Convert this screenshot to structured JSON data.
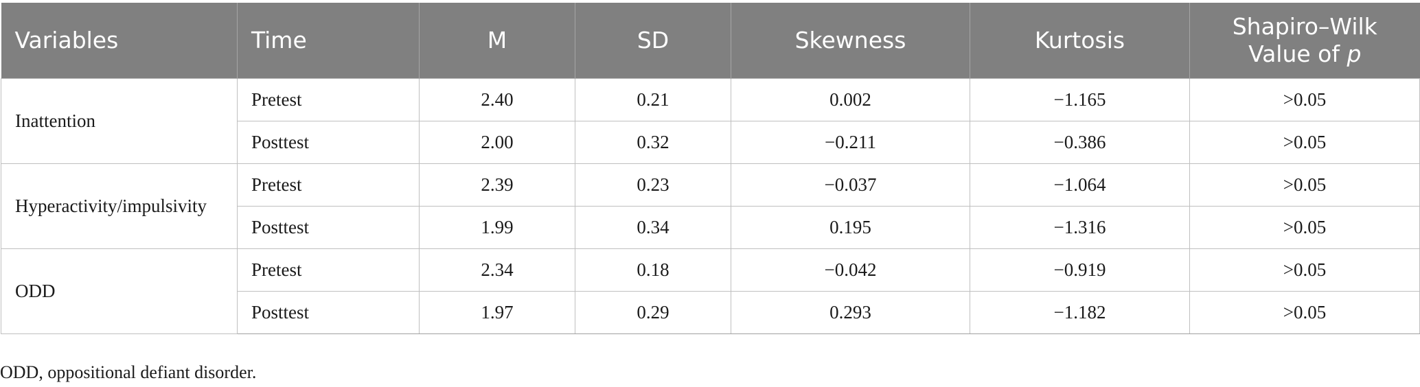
{
  "table": {
    "headers": {
      "variables": "Variables",
      "time": "Time",
      "m": "M",
      "sd": "SD",
      "skewness": "Skewness",
      "kurtosis": "Kurtosis",
      "sw_line1": "Shapiro–Wilk",
      "sw_line2_prefix": "Value of ",
      "sw_line2_italic": "p"
    },
    "groups": [
      {
        "variable": "Inattention",
        "rows": [
          {
            "time": "Pretest",
            "m": "2.40",
            "sd": "0.21",
            "skewness": "0.002",
            "kurtosis": "−1.165",
            "sw": ">0.05"
          },
          {
            "time": "Posttest",
            "m": "2.00",
            "sd": "0.32",
            "skewness": "−0.211",
            "kurtosis": "−0.386",
            "sw": ">0.05"
          }
        ]
      },
      {
        "variable": "Hyperactivity/impulsivity",
        "rows": [
          {
            "time": "Pretest",
            "m": "2.39",
            "sd": "0.23",
            "skewness": "−0.037",
            "kurtosis": "−1.064",
            "sw": ">0.05"
          },
          {
            "time": "Posttest",
            "m": "1.99",
            "sd": "0.34",
            "skewness": "0.195",
            "kurtosis": "−1.316",
            "sw": ">0.05"
          }
        ]
      },
      {
        "variable": "ODD",
        "rows": [
          {
            "time": "Pretest",
            "m": "2.34",
            "sd": "0.18",
            "skewness": "−0.042",
            "kurtosis": "−0.919",
            "sw": ">0.05"
          },
          {
            "time": "Posttest",
            "m": "1.97",
            "sd": "0.29",
            "skewness": "0.293",
            "kurtosis": "−1.182",
            "sw": ">0.05"
          }
        ]
      }
    ]
  },
  "footnote": "ODD, oppositional defiant disorder."
}
